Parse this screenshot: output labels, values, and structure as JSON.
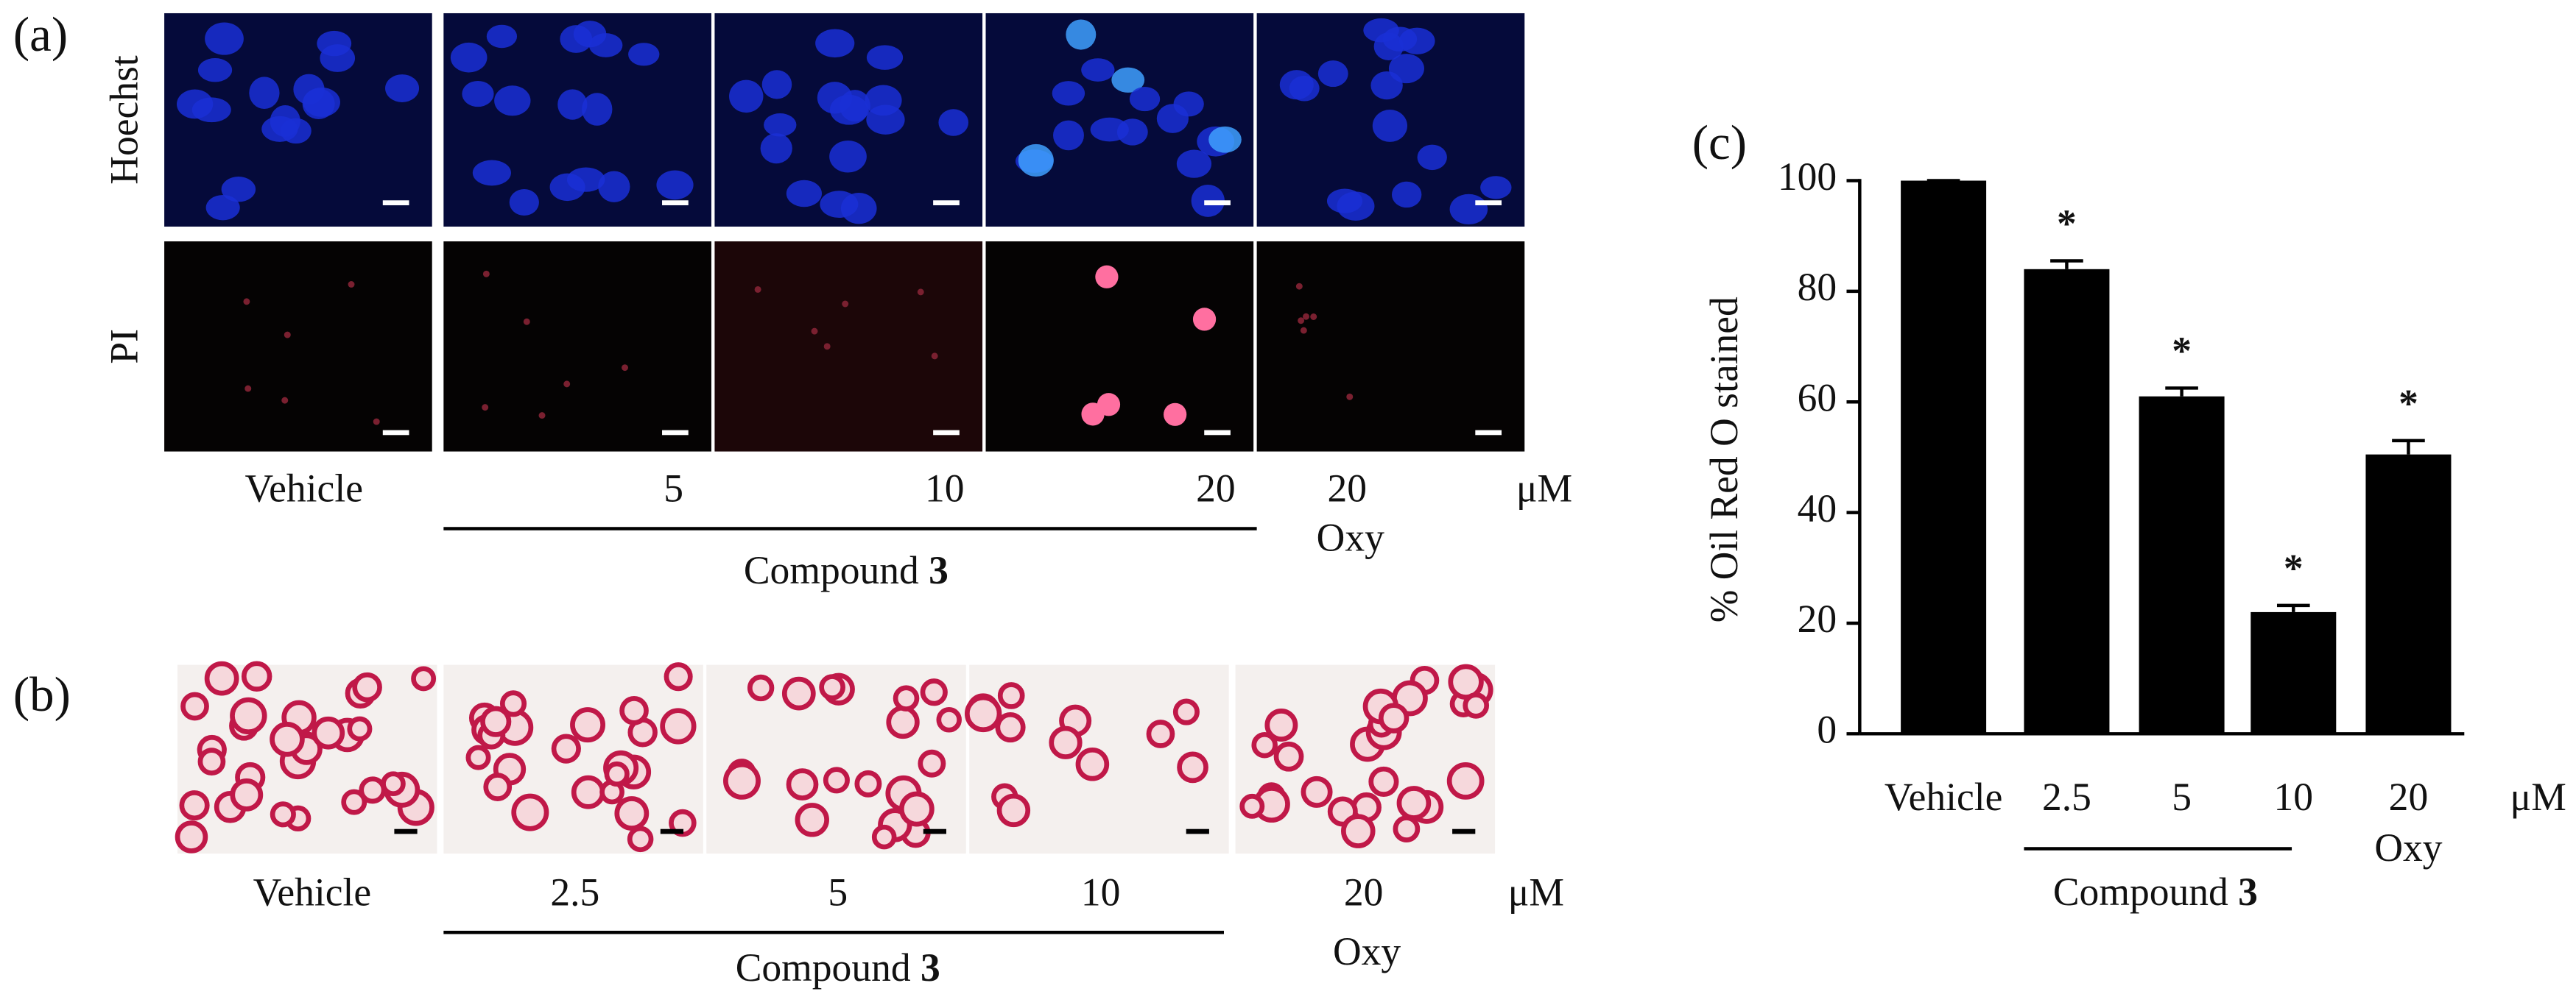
{
  "panel_a": {
    "label": "(a)",
    "row_labels": [
      "Hoechst",
      "PI"
    ],
    "column_labels": [
      "Vehicle",
      "5",
      "10",
      "20",
      "20"
    ],
    "unit": "μM",
    "group_label": "Compound",
    "group_number": "3",
    "oxy_label": "Oxy"
  },
  "panel_b": {
    "label": "(b)",
    "column_labels": [
      "Vehicle",
      "2.5",
      "5",
      "10",
      "20"
    ],
    "unit": "μM",
    "group_label": "Compound",
    "group_number": "3",
    "oxy_label": "Oxy"
  },
  "chart_data": {
    "type": "bar",
    "panel_label": "(c)",
    "y_label": "% Oil Red O stained",
    "categories": [
      "Vehicle",
      "2.5",
      "5",
      "10",
      "20"
    ],
    "values": [
      100,
      84,
      61,
      22,
      50.5
    ],
    "errors": [
      0,
      1.5,
      1.5,
      1.2,
      2.5
    ],
    "significance": [
      null,
      "*",
      "*",
      "*",
      "*"
    ],
    "color": "#000000",
    "ylim": [
      0,
      100
    ],
    "yticks": [
      0,
      20,
      40,
      60,
      80,
      100
    ],
    "unit": "μM",
    "group_label": "Compound",
    "group_number": "3",
    "oxy_label": "Oxy"
  }
}
